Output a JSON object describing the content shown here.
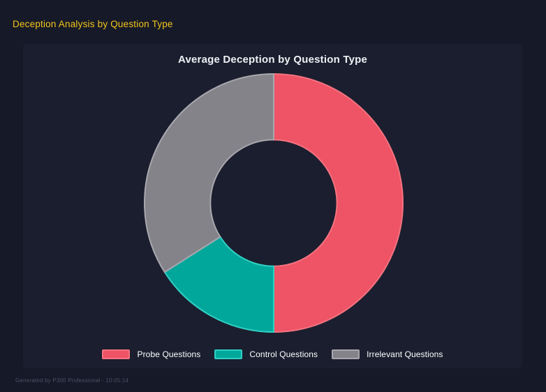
{
  "page": {
    "header_title": "Deception Analysis by Question Type",
    "footer_text": "Generated by P300 Professional - 10:05:14"
  },
  "colors": {
    "page_background": "#161927",
    "panel_background": "#1b1e2e",
    "header_title": "#f2c51d",
    "chart_title": "#eef0f4",
    "legend_text": "#ffffff",
    "footer_text": "#4b5065"
  },
  "chart_data": {
    "type": "pie",
    "subtype": "donut",
    "title": "Average Deception by Question Type",
    "legend_position": "bottom",
    "cutout_ratio": 0.49,
    "start_angle_deg": 0,
    "direction": "clockwise",
    "segments": [
      {
        "label": "Probe Questions",
        "percent": 50,
        "color": "#ee5366",
        "border_color": "#f3737f"
      },
      {
        "label": "Control Questions",
        "percent": 16,
        "color": "#02a79b",
        "border_color": "#2fd0c3"
      },
      {
        "label": "Irrelevant Questions",
        "percent": 34,
        "color": "#85838a",
        "border_color": "#a8a7ae"
      }
    ]
  }
}
